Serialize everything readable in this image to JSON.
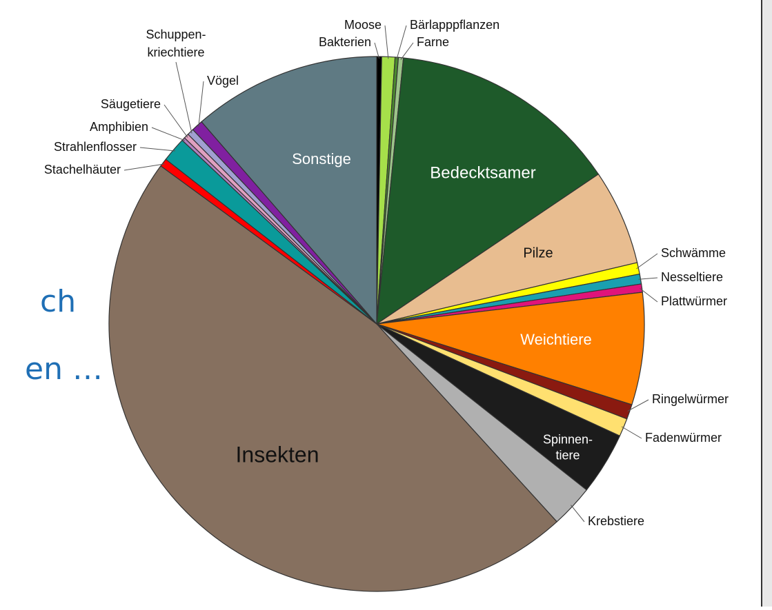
{
  "slide_text": [
    "ch",
    "en …"
  ],
  "chart_data": {
    "type": "pie",
    "categories": [
      "Bakterien",
      "Moose",
      "Bärlapppflanzen",
      "Farne",
      "Bedecktsamer",
      "Pilze",
      "Schwämme",
      "Nesseltiere",
      "Plattwürmer",
      "Weichtiere",
      "Ringelwürmer",
      "Fadenwürmer",
      "Spinnen-\ntiere",
      "Krebstiere",
      "Insekten",
      "Stachelhäuter",
      "Strahlenflosser",
      "Amphibien",
      "Säugetiere",
      "Schuppen-\nkriechtiere",
      "Vögel",
      "Sonstige"
    ],
    "values": [
      0.3,
      0.8,
      0.2,
      0.3,
      14,
      5.8,
      0.7,
      0.6,
      0.5,
      6.8,
      0.9,
      1.1,
      3.8,
      2.6,
      47,
      0.5,
      1.5,
      0.2,
      0.3,
      0.4,
      0.7,
      11.4
    ],
    "colors": [
      "#000000",
      "#a6e04a",
      "#4b8a2e",
      "#9cc48a",
      "#1e5a2a",
      "#e8bd90",
      "#ffff00",
      "#1aa0b0",
      "#e0147a",
      "#ff8000",
      "#8a1a10",
      "#ffe070",
      "#1c1c1c",
      "#b0b0b0",
      "#86705f",
      "#ff0000",
      "#0a9a9a",
      "#b080c0",
      "#e0a0c0",
      "#a0a0d0",
      "#8020a0",
      "#5f7a83"
    ]
  }
}
